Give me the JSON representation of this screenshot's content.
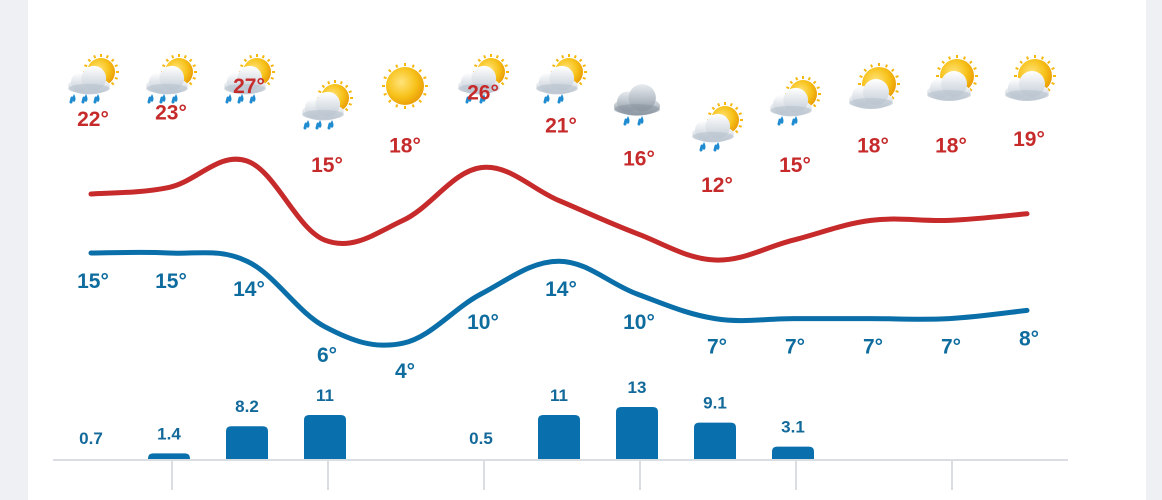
{
  "chart_data": {
    "type": "line",
    "title": "",
    "xlabel": "",
    "ylabel": "",
    "x": [
      1,
      2,
      3,
      4,
      5,
      6,
      7,
      8,
      9,
      10,
      11,
      12,
      13
    ],
    "series": [
      {
        "name": "",
        "kind": "high",
        "color": "#c62a2a",
        "values": [
          22,
          23,
          27,
          15,
          18,
          26,
          21,
          16,
          12,
          15,
          18,
          18,
          19
        ],
        "labels": [
          "22°",
          "23°",
          "27°",
          "15°",
          "18°",
          "26°",
          "21°",
          "16°",
          "12°",
          "15°",
          "18°",
          "18°",
          "19°"
        ]
      },
      {
        "name": "",
        "kind": "low",
        "color": "#0a6ea8",
        "values": [
          15,
          15,
          14,
          6,
          4,
          10,
          14,
          10,
          7,
          7,
          7,
          7,
          8
        ],
        "labels": [
          "15°",
          "15°",
          "14°",
          "6°",
          "4°",
          "10°",
          "14°",
          "10°",
          "7°",
          "7°",
          "7°",
          "7°",
          "8°"
        ]
      }
    ],
    "precipitation": {
      "type": "bar",
      "color": "#0a70ad",
      "values": [
        0.7,
        1.4,
        8.2,
        11,
        0,
        0.5,
        11,
        13,
        9.1,
        3.1,
        0,
        0,
        0
      ],
      "labels": [
        "0.7",
        "1.4",
        "8.2",
        "11",
        "",
        "0.5",
        "11",
        "13",
        "9.1",
        "3.1",
        "",
        "",
        ""
      ]
    },
    "grid": false,
    "legend": "none"
  },
  "icons": [
    "sun-cloud-heavy-rain-icon",
    "sun-cloud-heavy-rain-icon",
    "sun-cloud-heavy-rain-icon",
    "sun-cloud-heavy-rain-icon",
    "sun-icon",
    "sun-cloud-rain-icon",
    "sun-cloud-rain-icon",
    "cloud-rain-icon",
    "sun-cloud-rain-icon",
    "sun-cloud-rain-icon",
    "sun-cloud-icon",
    "sun-cloud-icon",
    "sun-cloud-icon"
  ]
}
